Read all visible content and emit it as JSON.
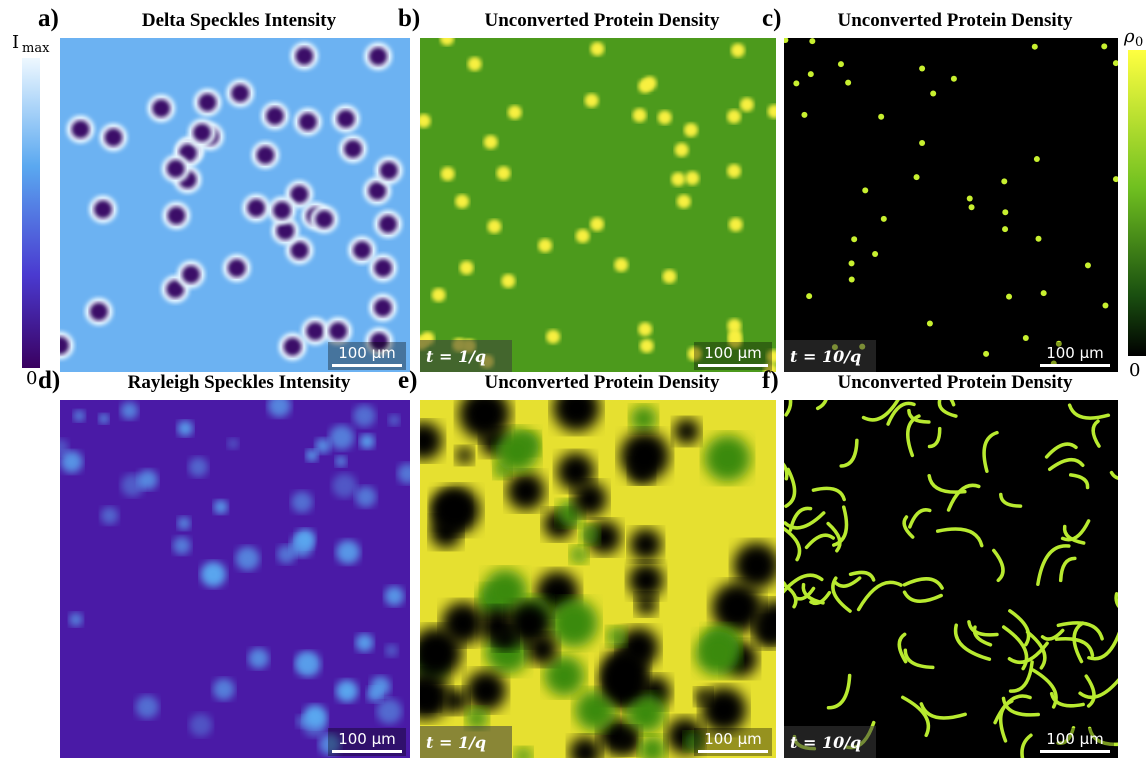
{
  "colorbars": [
    {
      "symbol": "I",
      "subscript": "max",
      "bottom_label": "0"
    },
    {
      "symbol": "ρ",
      "subscript": "0",
      "bottom_label": "0"
    }
  ],
  "panels": [
    {
      "label": "a)",
      "title": "Delta Speckles Intensity",
      "scale_bar": "100 µm"
    },
    {
      "label": "b)",
      "title": "Unconverted Protein Density",
      "scale_bar": "100 µm",
      "time_label": "t = 1/q"
    },
    {
      "label": "c)",
      "title": "Unconverted Protein Density",
      "scale_bar": "100 µm",
      "time_label": "t = 10/q"
    },
    {
      "label": "d)",
      "title": "Rayleigh Speckles Intensity",
      "scale_bar": "100 µm"
    },
    {
      "label": "e)",
      "title": "Unconverted Protein Density",
      "scale_bar": "100 µm",
      "time_label": "t = 1/q"
    },
    {
      "label": "f)",
      "title": "Unconverted Protein Density",
      "scale_bar": "100 µm",
      "time_label": "t = 10/q"
    }
  ]
}
